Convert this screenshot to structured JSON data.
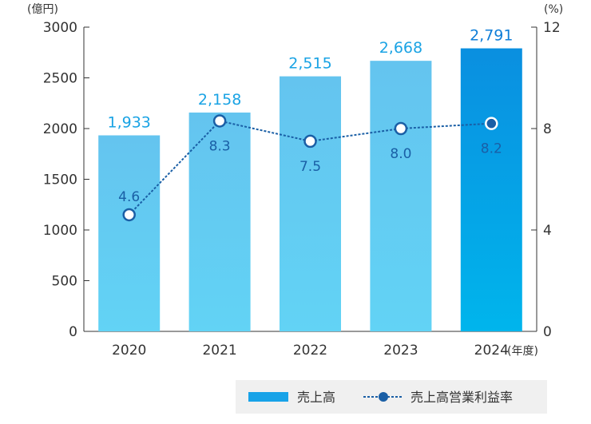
{
  "chart_data": {
    "type": "bar",
    "categories": [
      "2020",
      "2021",
      "2022",
      "2023",
      "2024"
    ],
    "x_unit": "(年度)",
    "y_left_unit": "(億円)",
    "y_right_unit": "(%)",
    "y_left_ticks": [
      "0",
      "500",
      "1000",
      "1500",
      "2000",
      "2500",
      "3000"
    ],
    "y_right_ticks": [
      "0",
      "4",
      "8",
      "12"
    ],
    "ylim_left": [
      0,
      3000
    ],
    "ylim_right": [
      0,
      12
    ],
    "series": [
      {
        "name": "売上高",
        "type": "bar",
        "axis": "left",
        "values": [
          1933,
          2158,
          2515,
          2668,
          2791
        ],
        "labels": [
          "1,933",
          "2,158",
          "2,515",
          "2,668",
          "2,791"
        ]
      },
      {
        "name": "売上高営業利益率",
        "type": "line",
        "axis": "right",
        "values": [
          4.6,
          8.3,
          7.5,
          8.0,
          8.2
        ],
        "labels": [
          "4.6",
          "8.3",
          "7.5",
          "8.0",
          "8.2"
        ]
      }
    ],
    "colors": {
      "bar_top": "#64c4ef",
      "bar_bottom": "#62d3f5",
      "bar_highlight_top": "#0a8fe0",
      "bar_highlight_bottom": "#00b5ec",
      "bar_label": "#1aa3e4",
      "bar_label_highlight": "#0f7ed8",
      "line": "#1a5fa6",
      "line_label": "#1a5fa6",
      "legend_bg": "#f0f0f0"
    },
    "legend_position": "bottom-right",
    "grid": false
  }
}
